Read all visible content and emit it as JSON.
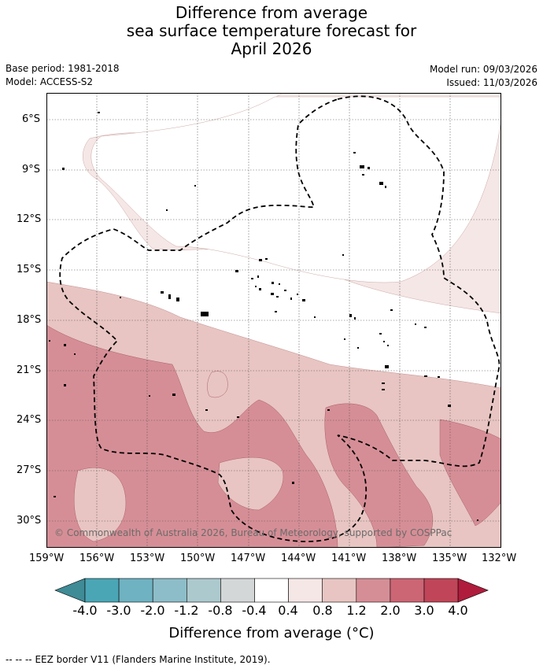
{
  "title": {
    "line1": "Difference from average",
    "line2": "sea surface temperature forecast for",
    "line3": "April 2026"
  },
  "meta": {
    "base_period": "Base period: 1981-2018",
    "model": "Model: ACCESS-S2",
    "model_run": "Model run: 09/03/2026",
    "issued": "Issued: 11/03/2026"
  },
  "lat_labels": [
    "6°S",
    "9°S",
    "12°S",
    "15°S",
    "18°S",
    "21°S",
    "24°S",
    "27°S",
    "30°S"
  ],
  "lon_labels": [
    "159°W",
    "156°W",
    "153°W",
    "150°W",
    "147°W",
    "144°W",
    "141°W",
    "138°W",
    "135°W",
    "132°W"
  ],
  "copyright": "© Commonwealth of Australia 2026, Bureau of Meteorology, supported by COSPPac",
  "colorbar": {
    "ticks": [
      "-4.0",
      "-3.0",
      "-2.0",
      "-1.2",
      "-0.8",
      "-0.4",
      "0.4",
      "0.8",
      "1.2",
      "2.0",
      "3.0",
      "4.0"
    ],
    "colors": [
      "#3f8b96",
      "#4aa6b5",
      "#6fb2c1",
      "#8dbdc8",
      "#acc9cd",
      "#d3d7d8",
      "#ffffff",
      "#f5e7e6",
      "#e8c5c2",
      "#d68e96",
      "#cc6574",
      "#c04558",
      "#b01c3c"
    ],
    "label": "Difference from average (°C)"
  },
  "legend": {
    "eez_symbol": "-- -- --",
    "eez_text": "EEZ border V11 (Flanders Marine Institute, 2019)."
  }
}
